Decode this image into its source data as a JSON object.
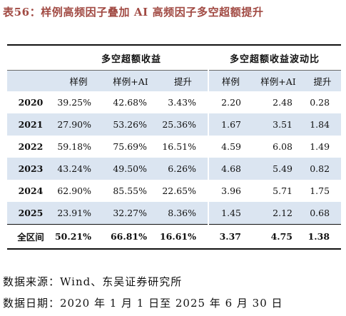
{
  "caption": "表56：样例高频因子叠加 AI 高频因子多空超额提升",
  "groups": [
    "多空超额收益",
    "多空超额收益波动比"
  ],
  "subheaders": [
    "样例",
    "样例+AI",
    "提升",
    "样例",
    "样例+AI",
    "提升"
  ],
  "rows": [
    {
      "year": "2020",
      "cells": [
        "39.25%",
        "42.68%",
        "3.43%",
        "2.20",
        "2.48",
        "0.28"
      ]
    },
    {
      "year": "2021",
      "cells": [
        "27.90%",
        "53.26%",
        "25.36%",
        "1.67",
        "3.51",
        "1.84"
      ]
    },
    {
      "year": "2022",
      "cells": [
        "59.18%",
        "75.69%",
        "16.51%",
        "4.59",
        "6.08",
        "1.49"
      ]
    },
    {
      "year": "2023",
      "cells": [
        "43.24%",
        "49.50%",
        "6.26%",
        "4.68",
        "5.49",
        "0.82"
      ]
    },
    {
      "year": "2024",
      "cells": [
        "62.90%",
        "85.55%",
        "22.65%",
        "3.96",
        "5.71",
        "1.75"
      ]
    },
    {
      "year": "2025",
      "cells": [
        "23.91%",
        "32.27%",
        "8.36%",
        "1.45",
        "2.12",
        "0.68"
      ]
    }
  ],
  "total": {
    "label": "全区间",
    "cells": [
      "50.21%",
      "66.81%",
      "16.61%",
      "3.37",
      "4.75",
      "1.38"
    ]
  },
  "source": "数据来源：Wind、东吴证券研究所",
  "date_range": "数据日期：2020 年 1 月 1 日至 2025 年 6 月 30 日"
}
